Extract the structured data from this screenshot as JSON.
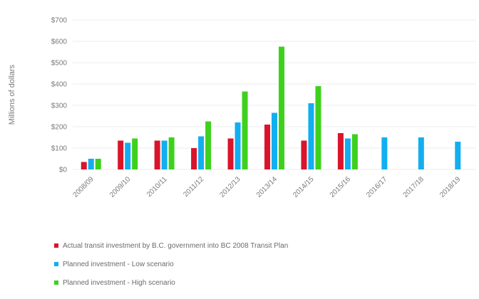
{
  "chart_data": {
    "type": "bar",
    "ylabel": "Millions of dollars",
    "yticks": [
      "$0",
      "$100",
      "$200",
      "$300",
      "$400",
      "$500",
      "$600",
      "$700"
    ],
    "ylim": [
      0,
      700
    ],
    "grid": true,
    "legend_position": "bottom",
    "categories": [
      "2008/09",
      "2009/10",
      "2010/11",
      "2011/12",
      "2012/13",
      "2013/14",
      "2014/15",
      "2015/16",
      "2016/17",
      "2017/18",
      "2018/19"
    ],
    "series": [
      {
        "name": "Actual transit investment by B.C. government into BC 2008 Transit Plan",
        "color": "#d9142b",
        "values": [
          35,
          135,
          135,
          100,
          145,
          210,
          135,
          170,
          null,
          null,
          null
        ]
      },
      {
        "name": "Planned investment - Low scenario",
        "color": "#12aef0",
        "values": [
          50,
          125,
          135,
          155,
          220,
          265,
          310,
          145,
          150,
          150,
          130
        ]
      },
      {
        "name": "Planned investment - High scenario",
        "color": "#3dd11d",
        "values": [
          50,
          145,
          150,
          225,
          365,
          575,
          390,
          165,
          null,
          null,
          null
        ]
      }
    ]
  }
}
